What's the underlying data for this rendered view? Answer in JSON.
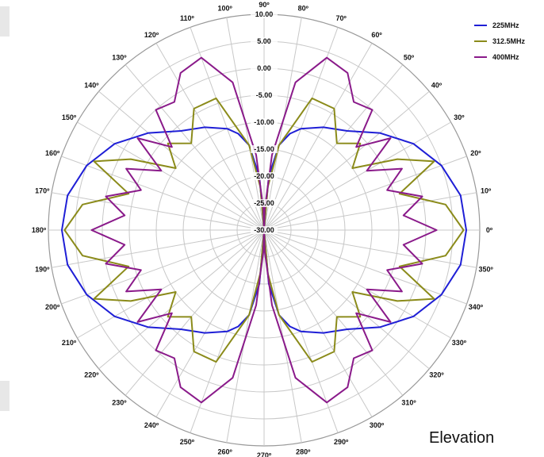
{
  "chart_data": {
    "type": "polar-line",
    "title": "",
    "caption": "Elevation",
    "angle_unit": "deg",
    "angle_ticks": [
      "0º",
      "10º",
      "20º",
      "30º",
      "40º",
      "50º",
      "60º",
      "70º",
      "80º",
      "90º",
      "100º",
      "110º",
      "120º",
      "130º",
      "140º",
      "150º",
      "160º",
      "170º",
      "180º",
      "190º",
      "200º",
      "210º",
      "220º",
      "230º",
      "240º",
      "250º",
      "260º",
      "270º",
      "280º",
      "290º",
      "300º",
      "310º",
      "320º",
      "330º",
      "340º",
      "350º"
    ],
    "radial_range": [
      -30,
      10
    ],
    "radial_ticks": [
      "-30.00",
      "-25.00",
      "-20.00",
      "-15.00",
      "-10.00",
      "-5.00",
      "0.00",
      "5.00",
      "10.00"
    ],
    "grid": true,
    "legend_position": "top-right",
    "series": [
      {
        "name": "225MHz",
        "color": "#1f1fd6",
        "angles": [
          0,
          10,
          20,
          30,
          40,
          50,
          60,
          70,
          75,
          80,
          85,
          90,
          95,
          100,
          105,
          110,
          120,
          130,
          140,
          150,
          160,
          170,
          180,
          190,
          200,
          210,
          220,
          230,
          240,
          250,
          255,
          260,
          265,
          270,
          275,
          280,
          285,
          290,
          300,
          310,
          320,
          330,
          340,
          350
        ],
        "values": [
          7.5,
          7.0,
          5.0,
          2.0,
          -2.0,
          -6.0,
          -8.0,
          -10.0,
          -11.5,
          -14.0,
          -20.0,
          -30.0,
          -20.0,
          -14.0,
          -11.5,
          -10.0,
          -8.0,
          -6.0,
          -2.0,
          2.0,
          5.0,
          7.0,
          7.5,
          7.0,
          5.0,
          2.0,
          -2.0,
          -6.0,
          -8.0,
          -10.0,
          -11.5,
          -14.0,
          -20.0,
          -30.0,
          -20.0,
          -14.0,
          -11.5,
          -10.0,
          -8.0,
          -6.0,
          -2.0,
          2.0,
          5.0,
          7.0
        ]
      },
      {
        "name": "312.5MHz",
        "color": "#8b8b1a",
        "angles": [
          0,
          8,
          15,
          22,
          28,
          35,
          42,
          50,
          60,
          70,
          80,
          85,
          90,
          95,
          100,
          110,
          120,
          130,
          138,
          145,
          152,
          158,
          165,
          172,
          180,
          188,
          195,
          202,
          208,
          215,
          222,
          230,
          240,
          250,
          260,
          265,
          270,
          275,
          280,
          290,
          300,
          310,
          318,
          325,
          332,
          338,
          345,
          352
        ],
        "values": [
          7.0,
          4.0,
          -4.0,
          4.0,
          -2.0,
          -10.0,
          -6.0,
          -9.0,
          -4.0,
          -4.0,
          -14.0,
          -22.0,
          -30.0,
          -22.0,
          -14.0,
          -4.0,
          -4.0,
          -9.0,
          -6.0,
          -10.0,
          -2.0,
          4.0,
          -4.0,
          4.0,
          7.0,
          4.0,
          -4.0,
          4.0,
          -2.0,
          -10.0,
          -6.0,
          -9.0,
          -4.0,
          -4.0,
          -14.0,
          -22.0,
          -30.0,
          -22.0,
          -14.0,
          -4.0,
          -4.0,
          -9.0,
          -6.0,
          -10.0,
          -2.0,
          4.0,
          -4.0,
          4.0
        ]
      },
      {
        "name": "400MHz",
        "color": "#8a1a8a",
        "angles": [
          0,
          6,
          12,
          18,
          24,
          30,
          36,
          42,
          48,
          55,
          62,
          70,
          78,
          84,
          88,
          90,
          92,
          96,
          102,
          110,
          118,
          125,
          132,
          138,
          144,
          150,
          156,
          162,
          168,
          174,
          180,
          186,
          192,
          198,
          204,
          210,
          216,
          222,
          228,
          235,
          242,
          250,
          258,
          264,
          268,
          270,
          272,
          276,
          282,
          290,
          298,
          305,
          312,
          318,
          324,
          330,
          336,
          342,
          348,
          354
        ],
        "values": [
          2.0,
          -4.0,
          0.0,
          -6.0,
          -2.0,
          -8.0,
          -1.0,
          -7.0,
          0.0,
          -1.0,
          3.0,
          4.0,
          -2.0,
          -16.0,
          -26.0,
          -30.0,
          -26.0,
          -16.0,
          -2.0,
          4.0,
          3.0,
          -1.0,
          0.0,
          -7.0,
          -1.0,
          -8.0,
          -2.0,
          -6.0,
          0.0,
          -4.0,
          2.0,
          -4.0,
          0.0,
          -6.0,
          -2.0,
          -8.0,
          -1.0,
          -7.0,
          0.0,
          -1.0,
          3.0,
          4.0,
          -2.0,
          -16.0,
          -26.0,
          -30.0,
          -26.0,
          -16.0,
          -2.0,
          4.0,
          3.0,
          -1.0,
          0.0,
          -7.0,
          -1.0,
          -8.0,
          -2.0,
          -6.0,
          0.0,
          -4.0
        ]
      }
    ]
  }
}
